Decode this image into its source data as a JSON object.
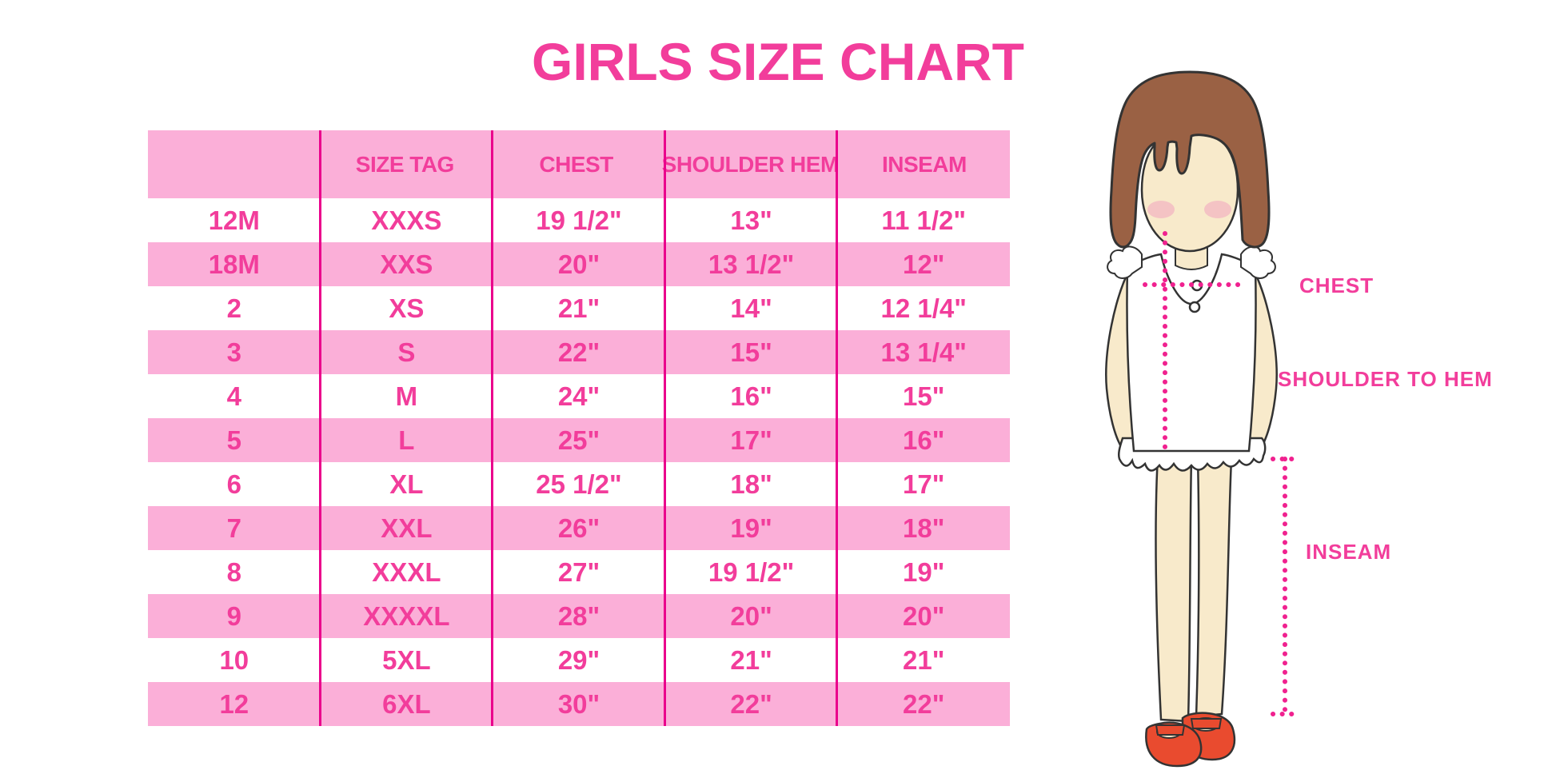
{
  "chart_data": {
    "type": "table",
    "title": "GIRLS SIZE CHART",
    "columns": [
      "",
      "SIZE TAG",
      "CHEST",
      "SHOULDER HEM",
      "INSEAM"
    ],
    "rows": [
      [
        "12M",
        "XXXS",
        "19 1/2\"",
        "13\"",
        "11 1/2\""
      ],
      [
        "18M",
        "XXS",
        "20\"",
        "13 1/2\"",
        "12\""
      ],
      [
        "2",
        "XS",
        "21\"",
        "14\"",
        "12 1/4\""
      ],
      [
        "3",
        "S",
        "22\"",
        "15\"",
        "13 1/4\""
      ],
      [
        "4",
        "M",
        "24\"",
        "16\"",
        "15\""
      ],
      [
        "5",
        "L",
        "25\"",
        "17\"",
        "16\""
      ],
      [
        "6",
        "XL",
        "25 1/2\"",
        "18\"",
        "17\""
      ],
      [
        "7",
        "XXL",
        "26\"",
        "19\"",
        "18\""
      ],
      [
        "8",
        "XXXL",
        "27\"",
        "19 1/2\"",
        "19\""
      ],
      [
        "9",
        "XXXXL",
        "28\"",
        "20\"",
        "20\""
      ],
      [
        "10",
        "5XL",
        "29\"",
        "21\"",
        "21\""
      ],
      [
        "12",
        "6XL",
        "30\"",
        "22\"",
        "22\""
      ]
    ],
    "annotations": [
      "CHEST",
      "SHOULDER TO HEM",
      "INSEAM"
    ],
    "layout": {
      "banded_rows": "alternating pink/white, header pink",
      "grid": "vertical magenta column dividers only"
    }
  },
  "diagram": {
    "chest_label": "CHEST",
    "shoulder_to_hem_label": "SHOULDER TO HEM",
    "inseam_label": "INSEAM"
  },
  "colors": {
    "accent_pink": "#F23D9B",
    "band_pink": "#FBAFD8",
    "divider_magenta": "#EA018C",
    "dotted_line_magenta": "#F0218F",
    "hair_brown": "#9A6144",
    "skin": "#F8EACB",
    "blush": "#F2A9BF",
    "shoe_red": "#E94B2F"
  }
}
